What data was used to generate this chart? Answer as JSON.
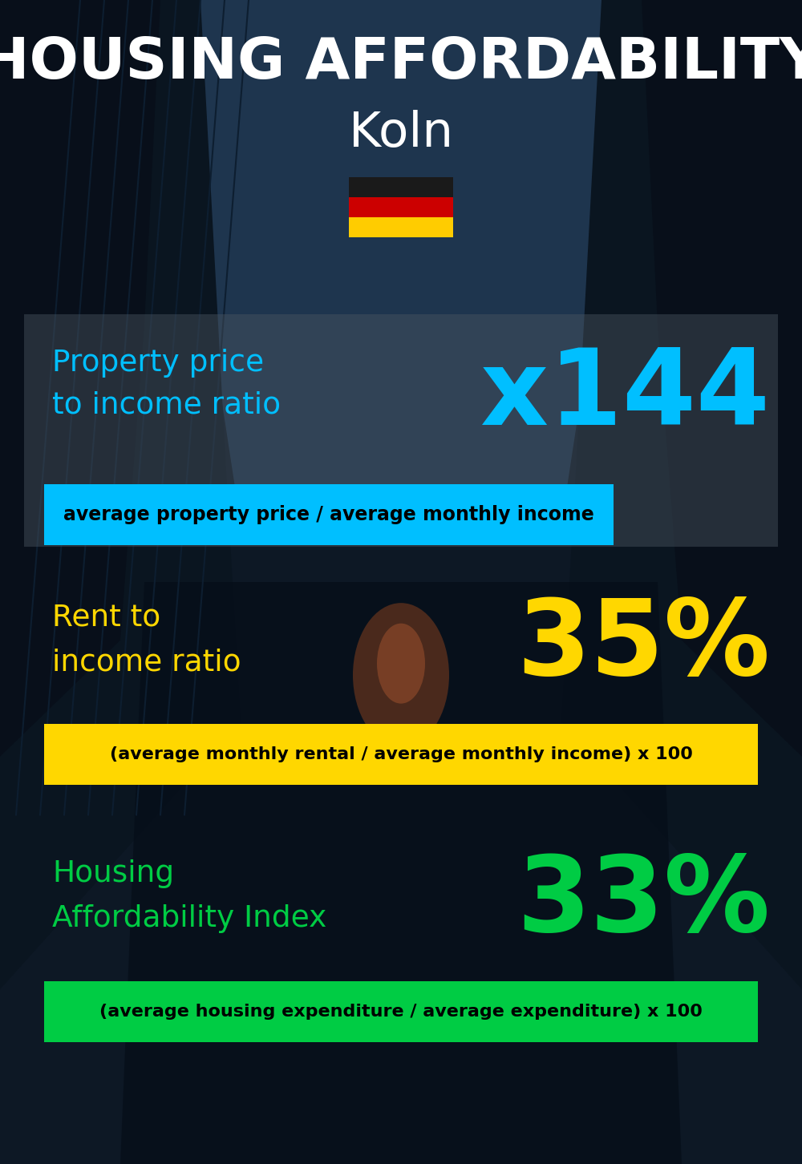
{
  "title_line1": "HOUSING AFFORDABILITY",
  "title_line2": "Koln",
  "bg_color": "#0d1825",
  "title_color": "#ffffff",
  "city_color": "#ffffff",
  "section1_label": "Property price\nto income ratio",
  "section1_value": "x144",
  "section1_label_color": "#00bfff",
  "section1_value_color": "#00bfff",
  "section1_band_text": "average property price / average monthly income",
  "section1_band_bg": "#00bfff",
  "section1_band_text_color": "#000000",
  "section2_label": "Rent to\nincome ratio",
  "section2_value": "35%",
  "section2_label_color": "#ffd700",
  "section2_value_color": "#ffd700",
  "section2_band_text": "(average monthly rental / average monthly income) x 100",
  "section2_band_bg": "#ffd700",
  "section2_band_text_color": "#000000",
  "section3_label": "Housing\nAffordability Index",
  "section3_value": "33%",
  "section3_label_color": "#00cc44",
  "section3_value_color": "#00cc44",
  "section3_band_text": "(average housing expenditure / average expenditure) x 100",
  "section3_band_bg": "#00cc44",
  "section3_band_text_color": "#000000",
  "flag_colors": [
    "#1a1a1a",
    "#cc0000",
    "#ffcc00"
  ],
  "overlay1_color": "#4a5a6a",
  "overlay1_alpha": 0.45,
  "overlay2_color": "#2a3a4a",
  "overlay2_alpha": 0.3
}
